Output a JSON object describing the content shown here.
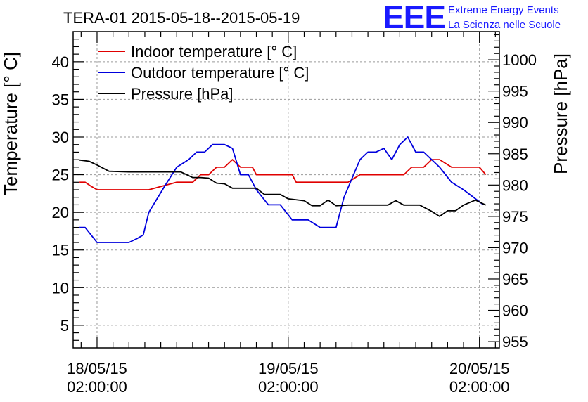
{
  "chart_data": {
    "type": "line",
    "title": "TERA-01 2015-05-18--2015-05-19",
    "brand": {
      "logo": "EEE",
      "line1": "Extreme Energy Events",
      "line2": "La Scienza nelle Scuole"
    },
    "ylabel": "Temperature [° C]",
    "y2label": "Pressure [hPa]",
    "xlim_hours": [
      -3,
      50.5
    ],
    "ylim": [
      2,
      44
    ],
    "y2lim": [
      954,
      1004.5
    ],
    "x_ticks": [
      {
        "hours": 0,
        "line1": "18/05/15",
        "line2": "02:00:00"
      },
      {
        "hours": 24,
        "line1": "19/05/15",
        "line2": "02:00:00"
      },
      {
        "hours": 48,
        "line1": "20/05/15",
        "line2": "02:00:00"
      }
    ],
    "y_ticks": [
      5,
      10,
      15,
      20,
      25,
      30,
      35,
      40
    ],
    "y2_ticks": [
      955,
      960,
      965,
      970,
      975,
      980,
      985,
      990,
      995,
      1000
    ],
    "grid": true,
    "legend_position": "top-left",
    "colors": {
      "indoor": "#e00000",
      "outdoor": "#0000dd",
      "pressure": "#000000",
      "brand": "#1a1aff"
    },
    "series": [
      {
        "name": "Indoor temperature [° C]",
        "axis": "left",
        "x": [
          -2.2,
          -1.5,
          -0.8,
          0.0,
          1.0,
          3.0,
          5.0,
          6.5,
          10.0,
          11.0,
          12.0,
          13.0,
          14.0,
          15.0,
          16.0,
          17.0,
          18.0,
          19.5,
          20.0,
          22.0,
          23.5,
          24.5,
          25.0,
          27.0,
          29.0,
          30.5,
          31.5,
          33.0,
          35.0,
          36.5,
          38.5,
          39.5,
          41.0,
          42.0,
          43.0,
          44.5,
          45.5,
          46.5,
          47.0,
          48.0,
          48.8
        ],
        "y": [
          24,
          24,
          23.5,
          23,
          23,
          23,
          23,
          23,
          24,
          24,
          24,
          25,
          25,
          26,
          26,
          27,
          26,
          26,
          25,
          25,
          25,
          25,
          24,
          24,
          24,
          24,
          24,
          25,
          25,
          25,
          25,
          26,
          26,
          27,
          27,
          26,
          26,
          26,
          26,
          26,
          25
        ]
      },
      {
        "name": "Outdoor temperature [° C]",
        "axis": "left",
        "x": [
          -2.2,
          -1.5,
          0.0,
          2.0,
          4.0,
          5.0,
          5.8,
          6.5,
          8.5,
          10.0,
          11.5,
          12.5,
          13.5,
          14.5,
          16.0,
          17.0,
          18.0,
          19.0,
          20.0,
          21.5,
          23.0,
          24.5,
          26.5,
          28.0,
          30.0,
          31.0,
          33.0,
          34.0,
          35.0,
          36.0,
          37.0,
          38.0,
          39.0,
          40.0,
          41.0,
          43.0,
          44.5,
          46.0,
          48.5
        ],
        "y": [
          18,
          18,
          16,
          16,
          16,
          16.5,
          17,
          20,
          23.5,
          26,
          27,
          28,
          28,
          29,
          29,
          28.5,
          25,
          25,
          23,
          21,
          21,
          19,
          19,
          18,
          18,
          22,
          27,
          28,
          28,
          28.5,
          27,
          29,
          30,
          28,
          28,
          26,
          24,
          23,
          21
        ]
      },
      {
        "name": "Pressure [hPa]",
        "axis": "right",
        "x": [
          -2.2,
          -1.0,
          0.0,
          1.5,
          4.0,
          6.0,
          9.0,
          10.5,
          12.0,
          13.0,
          14.0,
          15.0,
          16.0,
          17.0,
          18.0,
          20.0,
          21.0,
          23.0,
          24.0,
          26.0,
          27.0,
          28.0,
          29.0,
          30.0,
          31.5,
          34.0,
          36.5,
          37.5,
          38.5,
          40.5,
          42.0,
          43.0,
          44.0,
          45.0,
          46.0,
          47.5,
          48.8
        ],
        "y": [
          984,
          983.8,
          983.2,
          982.2,
          982.1,
          982.1,
          982.1,
          982.1,
          981.2,
          981.2,
          981.1,
          980.3,
          980.2,
          979.5,
          979.5,
          979.5,
          978.5,
          978.5,
          977.8,
          977.5,
          976.7,
          976.7,
          977.6,
          976.7,
          976.8,
          976.8,
          976.8,
          977.5,
          976.8,
          976.8,
          975.8,
          975.0,
          975.9,
          975.9,
          976.8,
          977.6,
          976.8
        ]
      }
    ]
  }
}
